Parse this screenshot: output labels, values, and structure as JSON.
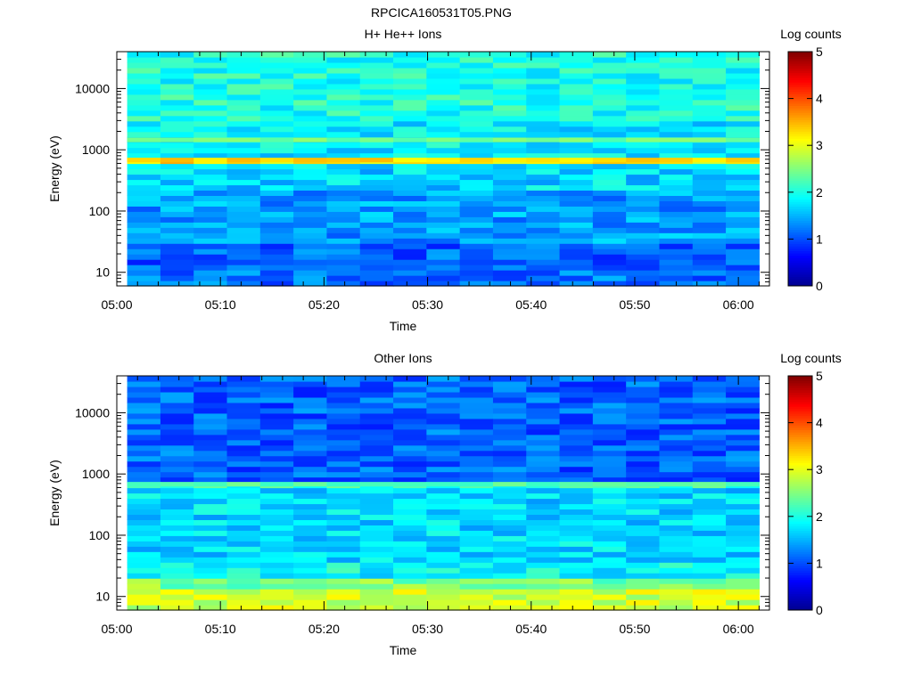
{
  "figure_title": "RPCICA160531T05.PNG",
  "colors": {
    "colormap": [
      "#00008f",
      "#0000ff",
      "#0080ff",
      "#00ffff",
      "#80ff80",
      "#ffff00",
      "#ff8000",
      "#ff0000",
      "#800000"
    ],
    "axis": "#000000",
    "background": "#ffffff"
  },
  "chart_data": [
    {
      "type": "heatmap",
      "title": "H+ He++ Ions",
      "xlabel": "Time",
      "ylabel": "Energy (eV)",
      "y_scale": "log",
      "ylim": [
        6,
        40000
      ],
      "x_ticks": [
        "05:00",
        "05:10",
        "05:20",
        "05:30",
        "05:40",
        "05:50",
        "06:00"
      ],
      "xlim": [
        "05:00",
        "06:03"
      ],
      "y_ticks": [
        "10",
        "100",
        "1000",
        "10000"
      ],
      "colorbar": {
        "label": "Log counts",
        "range": [
          0,
          5
        ],
        "ticks": [
          "0",
          "1",
          "2",
          "3",
          "4",
          "5"
        ]
      },
      "data_time_range": [
        "05:01",
        "06:02"
      ],
      "energy_bands_eV": [
        {
          "from": 6,
          "to": 10,
          "log_counts": 1.2
        },
        {
          "from": 10,
          "to": 30,
          "log_counts": 1.1
        },
        {
          "from": 30,
          "to": 200,
          "log_counts": 1.4
        },
        {
          "from": 200,
          "to": 580,
          "log_counts": 1.7
        },
        {
          "from": 580,
          "to": 780,
          "log_counts": 3.2
        },
        {
          "from": 780,
          "to": 3000,
          "log_counts": 1.8
        },
        {
          "from": 3000,
          "to": 40000,
          "log_counts": 2.0
        }
      ],
      "features": [
        {
          "energy_eV": 680,
          "log_counts": 3.3,
          "description_from_image": "line"
        },
        {
          "energy_eV": 1450,
          "log_counts": 2.4
        }
      ]
    },
    {
      "type": "heatmap",
      "title": "Other Ions",
      "xlabel": "Time",
      "ylabel": "Energy (eV)",
      "y_scale": "log",
      "ylim": [
        6,
        40000
      ],
      "x_ticks": [
        "05:00",
        "05:10",
        "05:20",
        "05:30",
        "05:40",
        "05:50",
        "06:00"
      ],
      "xlim": [
        "05:00",
        "06:03"
      ],
      "y_ticks": [
        "10",
        "100",
        "1000",
        "10000"
      ],
      "colorbar": {
        "label": "Log counts",
        "range": [
          0,
          5
        ],
        "ticks": [
          "0",
          "1",
          "2",
          "3",
          "4",
          "5"
        ]
      },
      "data_time_range": [
        "05:01",
        "06:02"
      ],
      "energy_bands_eV": [
        {
          "from": 6,
          "to": 14,
          "log_counts": 2.9
        },
        {
          "from": 14,
          "to": 20,
          "log_counts": 2.5
        },
        {
          "from": 20,
          "to": 40,
          "log_counts": 1.9
        },
        {
          "from": 40,
          "to": 580,
          "log_counts": 1.7
        },
        {
          "from": 580,
          "to": 800,
          "log_counts": 2.1
        },
        {
          "from": 800,
          "to": 40000,
          "log_counts": 1.1
        }
      ],
      "features": [
        {
          "energy_eV": 680,
          "log_counts": 2.3
        }
      ]
    }
  ]
}
